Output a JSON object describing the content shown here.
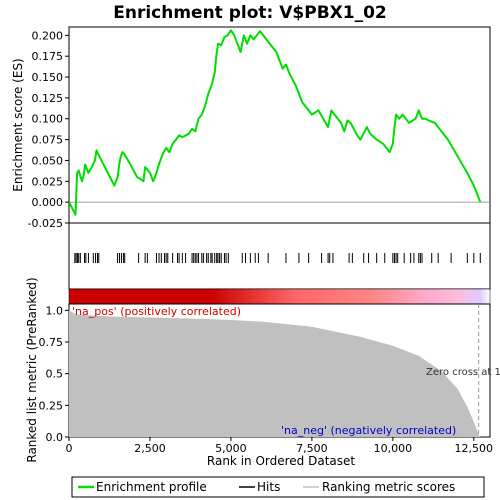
{
  "chart_data": {
    "type": "line",
    "title": "Enrichment plot: V$PBX1_02",
    "xlabel": "Rank in Ordered Dataset",
    "xlim": [
      0,
      13000
    ],
    "x_ticks": [
      {
        "value": 0,
        "label": "0"
      },
      {
        "value": 2500,
        "label": "2,500"
      },
      {
        "value": 5000,
        "label": "5,000"
      },
      {
        "value": 7500,
        "label": "7,500"
      },
      {
        "value": 10000,
        "label": "10,000"
      },
      {
        "value": 12500,
        "label": "12,500"
      }
    ],
    "es_panel": {
      "ylabel": "Enrichment score (ES)",
      "ylim": [
        -0.025,
        0.21
      ],
      "y_ticks": [
        {
          "value": -0.025,
          "label": "-0.025"
        },
        {
          "value": 0.0,
          "label": "0.000"
        },
        {
          "value": 0.025,
          "label": "0.025"
        },
        {
          "value": 0.05,
          "label": "0.050"
        },
        {
          "value": 0.075,
          "label": "0.075"
        },
        {
          "value": 0.1,
          "label": "0.100"
        },
        {
          "value": 0.125,
          "label": "0.125"
        },
        {
          "value": 0.15,
          "label": "0.150"
        },
        {
          "value": 0.175,
          "label": "0.175"
        },
        {
          "value": 0.2,
          "label": "0.200"
        }
      ],
      "series": [
        {
          "name": "Enrichment profile",
          "color": "#00dd00",
          "x": [
            0,
            200,
            250,
            300,
            400,
            450,
            500,
            600,
            700,
            800,
            850,
            900,
            1000,
            1200,
            1400,
            1500,
            1550,
            1600,
            1650,
            1700,
            1900,
            2100,
            2200,
            2300,
            2350,
            2400,
            2500,
            2600,
            2700,
            2800,
            2900,
            3000,
            3100,
            3200,
            3300,
            3400,
            3500,
            3700,
            3800,
            3900,
            4000,
            4100,
            4200,
            4300,
            4400,
            4500,
            4550,
            4600,
            4700,
            4800,
            4900,
            5000,
            5100,
            5200,
            5300,
            5400,
            5500,
            5600,
            5700,
            5800,
            5900,
            6000,
            6100,
            6200,
            6400,
            6600,
            6700,
            6800,
            7000,
            7200,
            7400,
            7500,
            7700,
            8000,
            8100,
            8200,
            8400,
            8500,
            8600,
            8700,
            8900,
            9000,
            9200,
            9300,
            9500,
            9700,
            9800,
            9900,
            10000,
            10050,
            10100,
            10200,
            10300,
            10500,
            10700,
            10800,
            10850,
            10900,
            11000,
            11100,
            11300,
            11500,
            11700,
            12000,
            12300,
            12500,
            12700
          ],
          "y": [
            0.0,
            -0.015,
            0.035,
            0.038,
            0.025,
            0.032,
            0.045,
            0.035,
            0.042,
            0.05,
            0.062,
            0.058,
            0.05,
            0.035,
            0.02,
            0.03,
            0.045,
            0.055,
            0.06,
            0.058,
            0.045,
            0.03,
            0.028,
            0.025,
            0.042,
            0.04,
            0.035,
            0.025,
            0.035,
            0.048,
            0.058,
            0.065,
            0.06,
            0.07,
            0.075,
            0.08,
            0.078,
            0.082,
            0.088,
            0.085,
            0.1,
            0.105,
            0.115,
            0.13,
            0.14,
            0.155,
            0.175,
            0.19,
            0.188,
            0.198,
            0.2,
            0.206,
            0.2,
            0.19,
            0.18,
            0.2,
            0.19,
            0.2,
            0.195,
            0.2,
            0.205,
            0.2,
            0.195,
            0.19,
            0.18,
            0.16,
            0.165,
            0.155,
            0.14,
            0.12,
            0.11,
            0.105,
            0.11,
            0.09,
            0.11,
            0.105,
            0.095,
            0.085,
            0.098,
            0.095,
            0.08,
            0.075,
            0.09,
            0.082,
            0.075,
            0.07,
            0.065,
            0.06,
            0.07,
            0.09,
            0.105,
            0.1,
            0.105,
            0.095,
            0.1,
            0.11,
            0.105,
            0.1,
            0.1,
            0.098,
            0.095,
            0.085,
            0.075,
            0.055,
            0.035,
            0.02,
            0.0
          ]
        }
      ]
    },
    "hits_panel": {
      "series_name": "Hits",
      "color": "#000000",
      "positions": [
        180,
        220,
        260,
        300,
        350,
        480,
        520,
        600,
        750,
        820,
        880,
        920,
        1500,
        1560,
        1620,
        1680,
        1720,
        2150,
        2350,
        2420,
        2700,
        2780,
        2850,
        2950,
        3000,
        3050,
        3200,
        3350,
        3400,
        3500,
        3600,
        3800,
        3850,
        3900,
        3950,
        4000,
        4100,
        4150,
        4250,
        4300,
        4380,
        4420,
        4500,
        4560,
        4600,
        4650,
        4700,
        4800,
        4850,
        4920,
        5350,
        5450,
        5600,
        5750,
        5850,
        6150,
        6700,
        7100,
        7400,
        7800,
        8000,
        8050,
        8150,
        8650,
        8750,
        9100,
        9250,
        9500,
        9750,
        10000,
        10050,
        10100,
        10150,
        10350,
        10550,
        10650,
        10800,
        10850,
        10900,
        11200,
        11400,
        11800,
        12300,
        12500,
        12700
      ]
    },
    "ranked_panel": {
      "ylabel": "Ranked list metric (PreRanked)",
      "ylim": [
        0.0,
        1.05
      ],
      "y_ticks": [
        {
          "value": 0.0,
          "label": "0.0"
        },
        {
          "value": 0.25,
          "label": "0.25"
        },
        {
          "value": 0.5,
          "label": "0.5"
        },
        {
          "value": 0.75,
          "label": "0.75"
        },
        {
          "value": 1.0,
          "label": "1.0"
        }
      ],
      "x": [
        0,
        200,
        600,
        1500,
        3000,
        4500,
        6000,
        7500,
        9000,
        10000,
        10800,
        11500,
        12000,
        12300,
        12500,
        12650,
        12700
      ],
      "y": [
        1.0,
        0.97,
        0.96,
        0.95,
        0.94,
        0.93,
        0.91,
        0.87,
        0.79,
        0.72,
        0.64,
        0.52,
        0.38,
        0.24,
        0.12,
        0.02,
        0.0
      ],
      "color": "#c0c0c0",
      "pos_label": "'na_pos' (positively correlated)",
      "pos_color": "#cc0000",
      "neg_label": "'na_neg' (negatively correlated)",
      "neg_color": "#0000cc",
      "zero_cross_label": "Zero cross at 1",
      "zero_cross_x": 12650
    },
    "heatmap": {
      "color_stops": [
        {
          "x": 0,
          "color": "#cc0000"
        },
        {
          "x": 4400,
          "color": "#cc0000"
        },
        {
          "x": 7000,
          "color": "#ff6666"
        },
        {
          "x": 9500,
          "color": "#ff8888"
        },
        {
          "x": 11000,
          "color": "#ffaacc"
        },
        {
          "x": 12000,
          "color": "#ffbbdd"
        },
        {
          "x": 12700,
          "color": "#ddccff"
        }
      ]
    },
    "legend": {
      "placement": "bottom",
      "items": [
        {
          "label": "Enrichment profile",
          "color": "#00dd00",
          "kind": "line"
        },
        {
          "label": "Hits",
          "color": "#000000",
          "kind": "line"
        },
        {
          "label": "Ranking metric scores",
          "color": "#c0c0c0",
          "kind": "line"
        }
      ]
    }
  }
}
